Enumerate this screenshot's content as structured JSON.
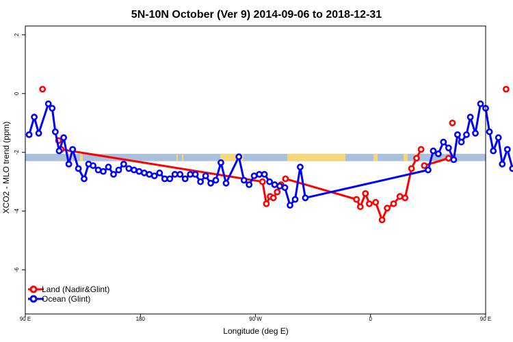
{
  "chart_data": {
    "type": "line",
    "title": "5N-10N October (Ver 9)   2014-09-06 to 2018-12-31",
    "xlabel": "Longitude (deg E)",
    "ylabel": "XCO2 - MLO trend (ppm)",
    "xlim": [
      90,
      450
    ],
    "ylim": [
      -7.5,
      2.3
    ],
    "x_ticks": [
      {
        "value": 90,
        "label": "90 E"
      },
      {
        "value": 180,
        "label": "180"
      },
      {
        "value": 270,
        "label": "90 W"
      },
      {
        "value": 360,
        "label": "0"
      },
      {
        "value": 450,
        "label": "90 E"
      },
      {
        "value": 540,
        "label": "180"
      }
    ],
    "y_ticks": [
      {
        "value": 2,
        "label": "2"
      },
      {
        "value": 0,
        "label": "0"
      },
      {
        "value": -2,
        "label": "-2"
      },
      {
        "value": -4,
        "label": "-4"
      },
      {
        "value": -6,
        "label": "-6"
      }
    ],
    "land_band": {
      "y_range": [
        -2.3,
        -2.05
      ],
      "color": "#a9c0de",
      "land_color": "#f5d67a"
    },
    "legend_position": "bottom-left",
    "series": [
      {
        "name": "Land (Nadir&Glint)",
        "color": "#ff0000",
        "points": [
          [
            103.5,
            0.15
          ],
          [
            116,
            -1.6
          ],
          [
            118,
            -1.9
          ],
          [
            275.5,
            -3.0
          ],
          [
            278.5,
            -3.75
          ],
          [
            281.5,
            -3.5
          ],
          [
            284,
            -3.55
          ],
          [
            287,
            -3.35
          ],
          [
            290,
            -3.1
          ],
          [
            293.5,
            -2.9
          ],
          [
            349,
            -3.6
          ],
          [
            352,
            -3.85
          ],
          [
            356,
            -3.4
          ],
          [
            359,
            -3.75
          ],
          [
            364,
            -3.7
          ],
          [
            369,
            -4.3
          ],
          [
            373,
            -3.9
          ],
          [
            378,
            -3.75
          ],
          [
            383,
            -3.5
          ],
          [
            387,
            -3.55
          ],
          [
            392,
            -2.55
          ],
          [
            396,
            -2.2
          ],
          [
            399.5,
            -1.9
          ],
          [
            402,
            -2.45
          ],
          [
            421,
            -2.2
          ],
          [
            424,
            -1.0
          ],
          [
            466,
            0.15
          ],
          [
            474,
            -1.6
          ],
          [
            476,
            -1.9
          ]
        ],
        "segments": [
          [
            2,
            3,
            4,
            5,
            6,
            7,
            8
          ],
          [
            9,
            10,
            11,
            12,
            13,
            14,
            15,
            16,
            17,
            18,
            19,
            20,
            21,
            22
          ],
          [
            23,
            24
          ]
        ]
      },
      {
        "name": "Ocean (Glint)",
        "color": "#0000ff",
        "points": [
          [
            93,
            -1.4
          ],
          [
            97,
            -0.8
          ],
          [
            100.5,
            -1.35
          ],
          [
            108,
            -0.35
          ],
          [
            111,
            -0.5
          ],
          [
            113.5,
            -1.3
          ],
          [
            116.5,
            -1.95
          ],
          [
            120,
            -1.5
          ],
          [
            124,
            -2.4
          ],
          [
            127,
            -1.9
          ],
          [
            131.5,
            -2.55
          ],
          [
            136,
            -2.9
          ],
          [
            139.5,
            -2.4
          ],
          [
            143,
            -2.45
          ],
          [
            147,
            -2.6
          ],
          [
            151,
            -2.65
          ],
          [
            155,
            -2.5
          ],
          [
            159,
            -2.75
          ],
          [
            163,
            -2.6
          ],
          [
            167,
            -2.4
          ],
          [
            171,
            -2.55
          ],
          [
            175,
            -2.6
          ],
          [
            179,
            -2.65
          ],
          [
            183,
            -2.7
          ],
          [
            187,
            -2.75
          ],
          [
            191,
            -2.8
          ],
          [
            195,
            -2.7
          ],
          [
            199,
            -2.9
          ],
          [
            203,
            -2.9
          ],
          [
            207,
            -2.75
          ],
          [
            211,
            -2.75
          ],
          [
            215,
            -2.9
          ],
          [
            219,
            -2.75
          ],
          [
            223,
            -2.75
          ],
          [
            227,
            -3.0
          ],
          [
            231,
            -2.8
          ],
          [
            235,
            -3.05
          ],
          [
            239,
            -2.95
          ],
          [
            243,
            -2.35
          ],
          [
            247,
            -3.05
          ],
          [
            257,
            -2.15
          ],
          [
            261,
            -2.95
          ],
          [
            265,
            -3.1
          ],
          [
            269,
            -2.8
          ],
          [
            273,
            -2.75
          ],
          [
            277,
            -2.75
          ],
          [
            281,
            -3.0
          ],
          [
            285,
            -3.1
          ],
          [
            289,
            -3.15
          ],
          [
            293,
            -3.2
          ],
          [
            297,
            -3.8
          ],
          [
            301,
            -3.6
          ],
          [
            305,
            -2.5
          ],
          [
            309,
            -3.55
          ],
          [
            405,
            -2.6
          ],
          [
            409,
            -1.95
          ],
          [
            413,
            -2.05
          ],
          [
            417,
            -1.65
          ],
          [
            421,
            -1.85
          ],
          [
            425,
            -2.25
          ],
          [
            428,
            -1.4
          ],
          [
            431,
            -1.65
          ],
          [
            435,
            -1.4
          ],
          [
            438,
            -0.8
          ],
          [
            442,
            -1.35
          ],
          [
            446,
            -0.35
          ],
          [
            450,
            -0.5
          ],
          [
            453,
            -1.3
          ],
          [
            456,
            -1.95
          ],
          [
            460,
            -1.5
          ],
          [
            463,
            -2.4
          ],
          [
            467,
            -1.9
          ],
          [
            471,
            -2.55
          ],
          [
            475,
            -2.9
          ],
          [
            479,
            -2.4
          ],
          [
            483,
            -2.45
          ],
          [
            487,
            -2.6
          ],
          [
            491,
            -2.65
          ],
          [
            495,
            -2.5
          ],
          [
            500,
            -2.75
          ]
        ]
      }
    ]
  }
}
